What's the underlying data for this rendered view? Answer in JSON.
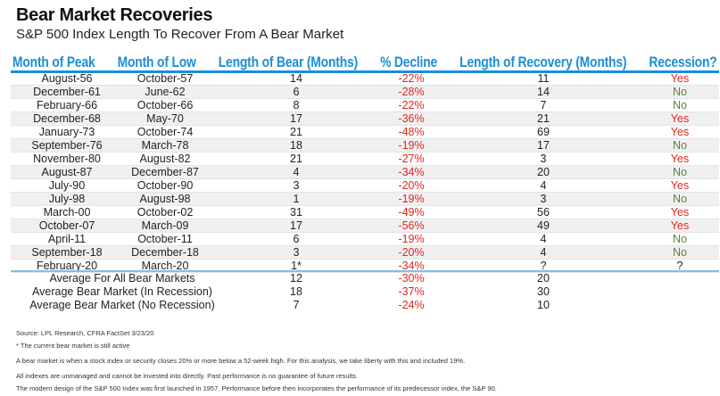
{
  "title": "Bear Market Recoveries",
  "subtitle": "S&P 500 Index Length To Recover From A Bear Market",
  "colors": {
    "header_blue": "#1b8ed6",
    "decline_red": "#e0261f",
    "yes_red": "#e0261f",
    "no_green": "#5f7f3c",
    "alt_row": "#f0f0f0"
  },
  "headers": [
    "Month of Peak",
    "Month of Low",
    "Length of Bear (Months)",
    "% Decline",
    "Length of Recovery (Months)",
    "Recession?"
  ],
  "rows": [
    [
      "August-56",
      "October-57",
      "14",
      "-22%",
      "11",
      "Yes"
    ],
    [
      "December-61",
      "June-62",
      "6",
      "-28%",
      "14",
      "No"
    ],
    [
      "February-66",
      "October-66",
      "8",
      "-22%",
      "7",
      "No"
    ],
    [
      "December-68",
      "May-70",
      "17",
      "-36%",
      "21",
      "Yes"
    ],
    [
      "January-73",
      "October-74",
      "21",
      "-48%",
      "69",
      "Yes"
    ],
    [
      "September-76",
      "March-78",
      "18",
      "-19%",
      "17",
      "No"
    ],
    [
      "November-80",
      "August-82",
      "21",
      "-27%",
      "3",
      "Yes"
    ],
    [
      "August-87",
      "December-87",
      "4",
      "-34%",
      "20",
      "No"
    ],
    [
      "July-90",
      "October-90",
      "3",
      "-20%",
      "4",
      "Yes"
    ],
    [
      "July-98",
      "August-98",
      "1",
      "-19%",
      "3",
      "No"
    ],
    [
      "March-00",
      "October-02",
      "31",
      "-49%",
      "56",
      "Yes"
    ],
    [
      "October-07",
      "March-09",
      "17",
      "-56%",
      "49",
      "Yes"
    ],
    [
      "April-11",
      "October-11",
      "6",
      "-19%",
      "4",
      "No"
    ],
    [
      "September-18",
      "December-18",
      "3",
      "-20%",
      "4",
      "No"
    ],
    [
      "February-20",
      "March-20",
      "1*",
      "-34%",
      "?",
      "?"
    ]
  ],
  "averages": [
    [
      "Average For All Bear Markets",
      "12",
      "-30%",
      "20"
    ],
    [
      "Average Bear Market (In Recession)",
      "18",
      "-37%",
      "30"
    ],
    [
      "Average Bear Market (No Recession)",
      "7",
      "-24%",
      "10"
    ]
  ],
  "footnotes": {
    "source": "Source: LPL Research, CFRA FactSet 3/23/20",
    "asterisk": "* The current bear market is still active",
    "definition": "A bear market is when a stock index or security closes 20% or more below a 52-week high. For this analysis, we take liberty with this and included 19%.",
    "disclaimer": "All indexes are unmanaged and cannot be invested into directly. Past performance is no guarantee of future results.",
    "history": "The modern design of the S&P 500 Index was first launched in 1957. Performance before then incorporates the performance of its predecessor index, the S&P 90."
  }
}
